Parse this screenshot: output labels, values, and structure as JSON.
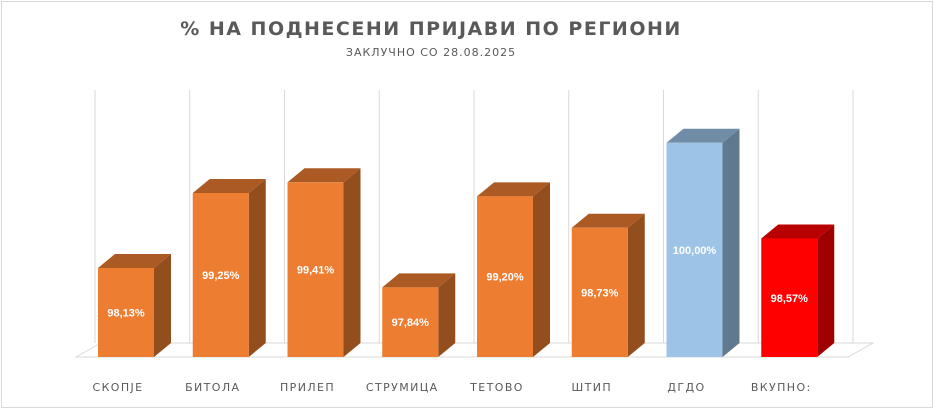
{
  "chart_data": {
    "type": "bar",
    "title": "% НА ПОДНЕСЕНИ ПРИЈАВИ ПО РЕГИОНИ",
    "subtitle": "ЗАКЛУЧНО СО 28.08.2025",
    "categories": [
      "СКОПЈЕ",
      "БИТОЛА",
      "ПРИЛЕП",
      "СТРУМИЦА",
      "ТЕТОВО",
      "ШТИП",
      "ДГДО",
      "ВКУПНО:"
    ],
    "values": [
      98.13,
      99.25,
      99.41,
      97.84,
      99.2,
      98.73,
      100.0,
      98.57
    ],
    "data_labels": [
      "98,13%",
      "99,25%",
      "99,41%",
      "97,84%",
      "99,20%",
      "98,73%",
      "100,00%",
      "98,57%"
    ],
    "ylim": [
      96.8,
      100.4
    ],
    "grid": true,
    "style": "3d-column",
    "colors": [
      "#ED7D31",
      "#ED7D31",
      "#ED7D31",
      "#ED7D31",
      "#ED7D31",
      "#ED7D31",
      "#9DC3E6",
      "#FF0000"
    ],
    "label_colors": [
      "#ffffff",
      "#ffffff",
      "#ffffff",
      "#ffffff",
      "#ffffff",
      "#ffffff",
      "#ffffff",
      "#ffffff"
    ]
  }
}
